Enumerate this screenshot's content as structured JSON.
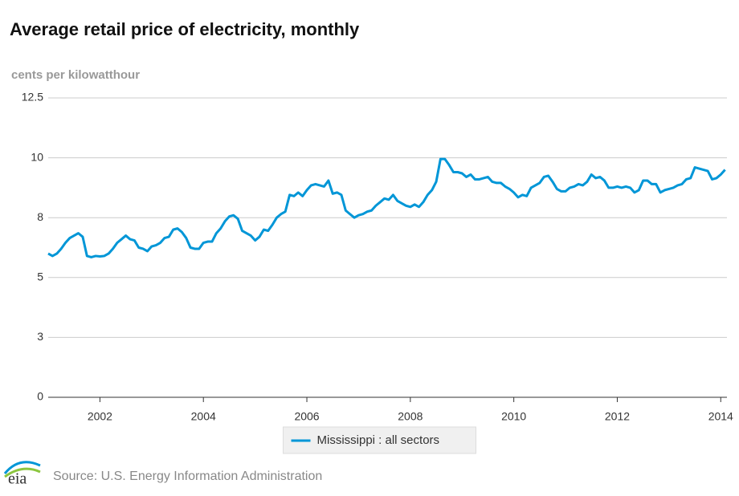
{
  "chart_data": {
    "type": "line",
    "title": "Average retail price of electricity, monthly",
    "y_label": "cents per kilowatthour",
    "source": "Source: U.S. Energy Information Administration",
    "xlim": [
      2001,
      2014.12
    ],
    "xticks": [
      2002,
      2004,
      2006,
      2008,
      2010,
      2012,
      2014
    ],
    "ylim": [
      0,
      12.5
    ],
    "yticks": [
      0,
      {
        "value": 2.5,
        "label": "3"
      },
      5,
      {
        "value": 7.5,
        "label": "8"
      },
      10,
      12.5
    ],
    "grid": true,
    "legend": "bottom",
    "x": [
      2001,
      2001.083,
      2001.167,
      2001.25,
      2001.333,
      2001.417,
      2001.5,
      2001.583,
      2001.667,
      2001.75,
      2001.833,
      2001.917,
      2002,
      2002.083,
      2002.167,
      2002.25,
      2002.333,
      2002.417,
      2002.5,
      2002.583,
      2002.667,
      2002.75,
      2002.833,
      2002.917,
      2003,
      2003.083,
      2003.167,
      2003.25,
      2003.333,
      2003.417,
      2003.5,
      2003.583,
      2003.667,
      2003.75,
      2003.833,
      2003.917,
      2004,
      2004.083,
      2004.167,
      2004.25,
      2004.333,
      2004.417,
      2004.5,
      2004.583,
      2004.667,
      2004.75,
      2004.833,
      2004.917,
      2005,
      2005.083,
      2005.167,
      2005.25,
      2005.333,
      2005.417,
      2005.5,
      2005.583,
      2005.667,
      2005.75,
      2005.833,
      2005.917,
      2006,
      2006.083,
      2006.167,
      2006.25,
      2006.333,
      2006.417,
      2006.5,
      2006.583,
      2006.667,
      2006.75,
      2006.833,
      2006.917,
      2007,
      2007.083,
      2007.167,
      2007.25,
      2007.333,
      2007.417,
      2007.5,
      2007.583,
      2007.667,
      2007.75,
      2007.833,
      2007.917,
      2008,
      2008.083,
      2008.167,
      2008.25,
      2008.333,
      2008.417,
      2008.5,
      2008.583,
      2008.667,
      2008.75,
      2008.833,
      2008.917,
      2009,
      2009.083,
      2009.167,
      2009.25,
      2009.333,
      2009.417,
      2009.5,
      2009.583,
      2009.667,
      2009.75,
      2009.833,
      2009.917,
      2010,
      2010.083,
      2010.167,
      2010.25,
      2010.333,
      2010.417,
      2010.5,
      2010.583,
      2010.667,
      2010.75,
      2010.833,
      2010.917,
      2011,
      2011.083,
      2011.167,
      2011.25,
      2011.333,
      2011.417,
      2011.5,
      2011.583,
      2011.667,
      2011.75,
      2011.833,
      2011.917,
      2012,
      2012.083,
      2012.167,
      2012.25,
      2012.333,
      2012.417,
      2012.5,
      2012.583,
      2012.667,
      2012.75,
      2012.833,
      2012.917,
      2013,
      2013.083,
      2013.167,
      2013.25,
      2013.333,
      2013.417,
      2013.5,
      2013.583,
      2013.667,
      2013.75,
      2013.833,
      2013.917,
      2014,
      2014.083
    ],
    "series": [
      {
        "name": "Mississippi : all sectors",
        "color": "#0096d7",
        "values": [
          6.0,
          5.9,
          6.0,
          6.2,
          6.45,
          6.65,
          6.75,
          6.85,
          6.7,
          5.9,
          5.85,
          5.9,
          5.88,
          5.9,
          6.0,
          6.2,
          6.45,
          6.6,
          6.75,
          6.6,
          6.55,
          6.25,
          6.2,
          6.1,
          6.3,
          6.35,
          6.45,
          6.65,
          6.7,
          7.0,
          7.05,
          6.9,
          6.65,
          6.25,
          6.2,
          6.2,
          6.45,
          6.5,
          6.5,
          6.85,
          7.05,
          7.35,
          7.55,
          7.6,
          7.45,
          6.95,
          6.85,
          6.75,
          6.55,
          6.7,
          7.0,
          6.95,
          7.2,
          7.5,
          7.65,
          7.75,
          8.45,
          8.4,
          8.55,
          8.4,
          8.65,
          8.85,
          8.9,
          8.85,
          8.8,
          9.05,
          8.5,
          8.55,
          8.45,
          7.8,
          7.65,
          7.5,
          7.6,
          7.65,
          7.75,
          7.8,
          8.0,
          8.15,
          8.3,
          8.25,
          8.45,
          8.2,
          8.1,
          8.0,
          7.95,
          8.05,
          7.95,
          8.15,
          8.45,
          8.65,
          9.0,
          9.95,
          9.95,
          9.7,
          9.4,
          9.4,
          9.35,
          9.2,
          9.3,
          9.1,
          9.1,
          9.15,
          9.2,
          9.0,
          8.95,
          8.95,
          8.8,
          8.7,
          8.55,
          8.35,
          8.45,
          8.4,
          8.75,
          8.85,
          8.95,
          9.2,
          9.25,
          9.0,
          8.7,
          8.6,
          8.6,
          8.75,
          8.8,
          8.9,
          8.85,
          9.0,
          9.3,
          9.15,
          9.2,
          9.05,
          8.75,
          8.75,
          8.8,
          8.75,
          8.8,
          8.75,
          8.55,
          8.65,
          9.05,
          9.05,
          8.9,
          8.9,
          8.55,
          8.65,
          8.7,
          8.75,
          8.85,
          8.9,
          9.1,
          9.15,
          9.6,
          9.55,
          9.5,
          9.45,
          9.1,
          9.15,
          9.3,
          9.5
        ]
      }
    ]
  }
}
